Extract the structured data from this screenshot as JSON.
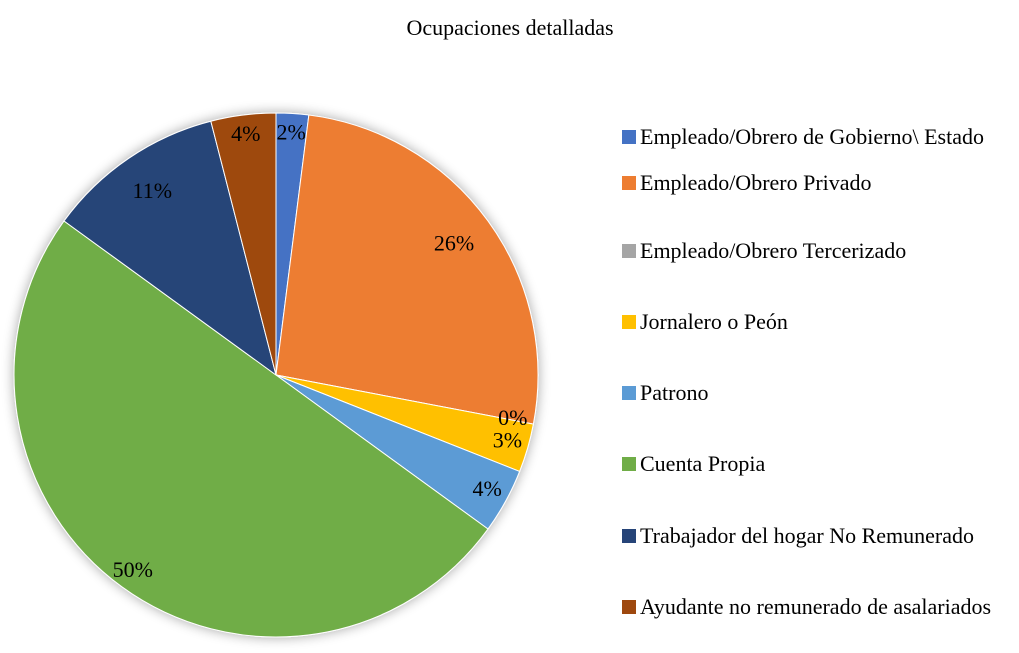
{
  "chart_data": {
    "type": "pie",
    "title": "Ocupaciones detalladas",
    "categories": [
      "Empleado/Obrero de Gobierno\\ Estado",
      "Empleado/Obrero Privado",
      "Empleado/Obrero Tercerizado",
      "Jornalero o Peón",
      "Patrono",
      "Cuenta Propia",
      "Trabajador del hogar No Remunerado",
      "Ayudante no remunerado de asalariados"
    ],
    "values": [
      2,
      26,
      0,
      3,
      4,
      50,
      11,
      4
    ],
    "value_labels": [
      "2%",
      "26%",
      "0%",
      "3%",
      "4%",
      "50%",
      "11%",
      "4%"
    ],
    "colors": [
      "#4472c4",
      "#ed7d31",
      "#a5a5a5",
      "#ffc000",
      "#5b9bd5",
      "#70ad47",
      "#264478",
      "#9e480e"
    ],
    "legend": "right"
  }
}
